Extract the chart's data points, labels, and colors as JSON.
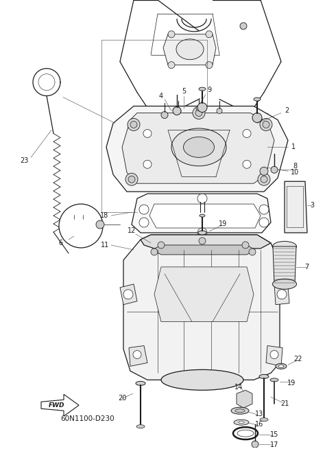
{
  "bg_color": "#ffffff",
  "line_color": "#1a1a1a",
  "lw_main": 0.9,
  "lw_thin": 0.5,
  "lw_leader": 0.4,
  "fig_width": 4.74,
  "fig_height": 6.54,
  "dpi": 100,
  "fwd_text": "FWD",
  "part_code": "60N1100-D230"
}
